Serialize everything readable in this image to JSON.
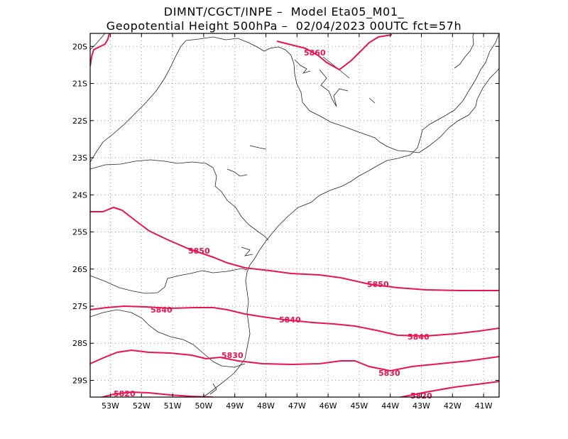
{
  "header": {
    "line1": "DIMNT/CGCT/INPE –  Model Eta05_M01_",
    "line2": "Geopotential Height 500hPa –  02/04/2023 00UTC fct=57h"
  },
  "map": {
    "lon_range": [
      -53.65,
      -40.5
    ],
    "lat_range": [
      -19.65,
      -29.45
    ],
    "lon_ticks": [
      "53W",
      "52W",
      "51W",
      "50W",
      "49W",
      "48W",
      "47W",
      "46W",
      "45W",
      "44W",
      "43W",
      "42W",
      "41W"
    ],
    "lat_ticks": [
      "20S",
      "21S",
      "22S",
      "23S",
      "24S",
      "25S",
      "26S",
      "27S",
      "28S",
      "29S"
    ],
    "contour_color": "#e8134f",
    "contour_labels": [
      "5860",
      "5850",
      "5850",
      "5840",
      "5840",
      "5840",
      "5830",
      "5830",
      "5820",
      "5820"
    ]
  }
}
